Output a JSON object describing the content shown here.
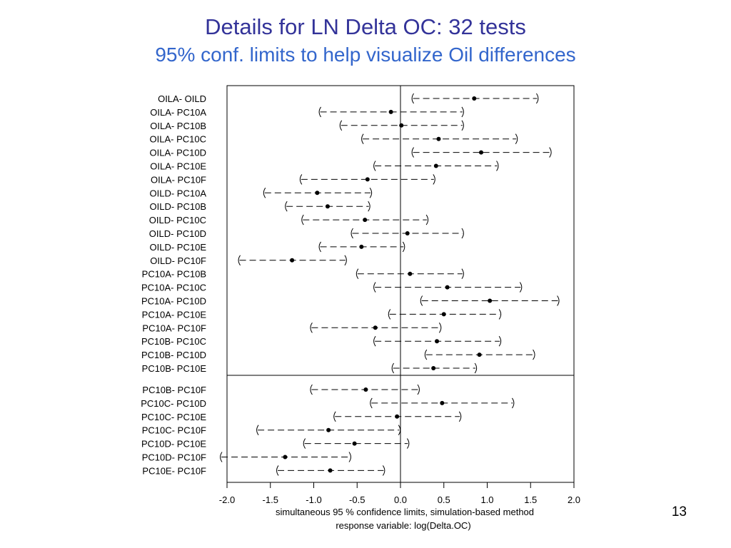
{
  "slide": {
    "title": "Details for LN Delta OC: 32 tests",
    "subtitle": "95% conf. limits to help visualize Oil differences",
    "page_number": "13"
  },
  "colors": {
    "title": "#333399",
    "subtitle": "#3366cc",
    "ink": "#000000"
  },
  "chart_data": {
    "type": "interval",
    "xlabel_line1": "simultaneous  95 % confidence limits, simulation-based method",
    "xlabel_line2": "response variable: log(Delta.OC)",
    "xlim": [
      -2.0,
      2.0
    ],
    "xticks": [
      -2.0,
      -1.5,
      -1.0,
      -0.5,
      0.0,
      0.5,
      1.0,
      1.5,
      2.0
    ],
    "xtick_labels": [
      "-2.0",
      "-1.5",
      "-1.0",
      "-0.5",
      "0.0",
      "0.5",
      "1.0",
      "1.5",
      "2.0"
    ],
    "reference_line": 0.0,
    "grid": false,
    "groups": [
      {
        "rows": [
          {
            "label": "OILA- OILD",
            "lower": 0.12,
            "estimate": 0.85,
            "upper": 1.6
          },
          {
            "label": "OILA- PC10A",
            "lower": -0.95,
            "estimate": -0.11,
            "upper": 0.74
          },
          {
            "label": "OILA- PC10B",
            "lower": -0.71,
            "estimate": 0.01,
            "upper": 0.74
          },
          {
            "label": "OILA- PC10C",
            "lower": -0.46,
            "estimate": 0.44,
            "upper": 1.36
          },
          {
            "label": "OILA- PC10D",
            "lower": 0.12,
            "estimate": 0.93,
            "upper": 1.75
          },
          {
            "label": "OILA- PC10E",
            "lower": -0.32,
            "estimate": 0.41,
            "upper": 1.14
          },
          {
            "label": "OILA- PC10F",
            "lower": -1.17,
            "estimate": -0.38,
            "upper": 0.41
          },
          {
            "label": "OILD- PC10A",
            "lower": -1.59,
            "estimate": -0.96,
            "upper": -0.32
          },
          {
            "label": "OILD- PC10B",
            "lower": -1.34,
            "estimate": -0.84,
            "upper": -0.34
          },
          {
            "label": "OILD- PC10C",
            "lower": -1.15,
            "estimate": -0.41,
            "upper": 0.33
          },
          {
            "label": "OILD- PC10D",
            "lower": -0.58,
            "estimate": 0.08,
            "upper": 0.74
          },
          {
            "label": "OILD- PC10E",
            "lower": -0.95,
            "estimate": -0.45,
            "upper": 0.06
          },
          {
            "label": "OILD- PC10F",
            "lower": -1.88,
            "estimate": -1.25,
            "upper": -0.61
          },
          {
            "label": "PC10A- PC10B",
            "lower": -0.52,
            "estimate": 0.11,
            "upper": 0.74
          },
          {
            "label": "PC10A- PC10C",
            "lower": -0.32,
            "estimate": 0.54,
            "upper": 1.41
          },
          {
            "label": "PC10A- PC10D",
            "lower": 0.22,
            "estimate": 1.03,
            "upper": 1.84
          },
          {
            "label": "PC10A- PC10E",
            "lower": -0.15,
            "estimate": 0.5,
            "upper": 1.17
          },
          {
            "label": "PC10A- PC10F",
            "lower": -1.05,
            "estimate": -0.29,
            "upper": 0.48
          },
          {
            "label": "PC10B- PC10C",
            "lower": -0.32,
            "estimate": 0.42,
            "upper": 1.17
          },
          {
            "label": "PC10B- PC10D",
            "lower": 0.27,
            "estimate": 0.91,
            "upper": 1.56
          },
          {
            "label": "PC10B- PC10E",
            "lower": -0.11,
            "estimate": 0.38,
            "upper": 0.89
          }
        ]
      },
      {
        "rows": [
          {
            "label": "PC10B- PC10F",
            "lower": -1.05,
            "estimate": -0.4,
            "upper": 0.23
          },
          {
            "label": "PC10C- PC10D",
            "lower": -0.36,
            "estimate": 0.48,
            "upper": 1.32
          },
          {
            "label": "PC10C- PC10E",
            "lower": -0.78,
            "estimate": -0.04,
            "upper": 0.71
          },
          {
            "label": "PC10C- PC10F",
            "lower": -1.67,
            "estimate": -0.83,
            "upper": 0.01
          },
          {
            "label": "PC10D- PC10E",
            "lower": -1.13,
            "estimate": -0.53,
            "upper": 0.11
          },
          {
            "label": "PC10D- PC10F",
            "lower": -2.09,
            "estimate": -1.33,
            "upper": -0.56
          },
          {
            "label": "PC10E- PC10F",
            "lower": -1.44,
            "estimate": -0.81,
            "upper": -0.17
          }
        ]
      }
    ]
  }
}
